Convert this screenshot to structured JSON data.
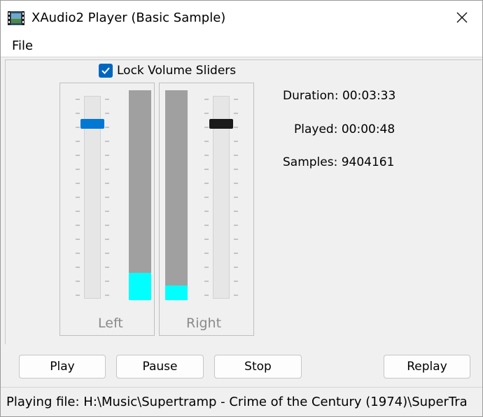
{
  "window": {
    "title": "XAudio2 Player (Basic Sample)",
    "app_icon": "film-strip-icon",
    "close_icon": "close-icon"
  },
  "menu": {
    "items": [
      {
        "label": "File"
      }
    ]
  },
  "lock": {
    "label": "Lock Volume Sliders",
    "checked": true
  },
  "left_channel": {
    "label": "Left",
    "volume_level": 0.88,
    "meter_level": 0.13,
    "thumb_color": "#0078d4"
  },
  "right_channel": {
    "label": "Right",
    "volume_level": 0.88,
    "meter_level": 0.07,
    "thumb_color": "#1a1a1a"
  },
  "meter_colors": {
    "fill": "#00ffff",
    "background": "#a0a0a0"
  },
  "info": {
    "duration": "Duration: 00:03:33",
    "played": "Played: 00:00:48",
    "samples": "Samples: 9404161"
  },
  "buttons": {
    "play": "Play",
    "pause": "Pause",
    "stop": "Stop",
    "replay": "Replay"
  },
  "status": {
    "text": "Playing file: H:\\Music\\Supertramp - Crime of the Century (1974)\\SuperTra"
  }
}
